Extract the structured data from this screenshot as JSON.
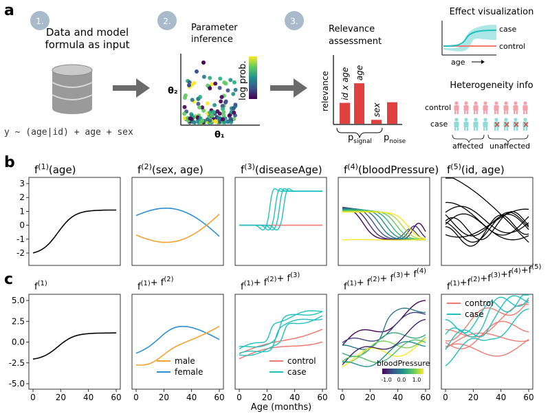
{
  "panel_a": {
    "label": "a",
    "steps": [
      {
        "badge": "1.",
        "text_lines": [
          "Data and model",
          "formula as input"
        ]
      },
      {
        "badge": "2.",
        "text_lines": [
          "Parameter",
          "inference"
        ]
      },
      {
        "badge": "3.",
        "text_lines": [
          "Relevance",
          "assessment"
        ]
      }
    ],
    "formula": "y ~ (age|id) + age + sex",
    "param_plot": {
      "y_label": "θ₂",
      "x_label": "θ₁",
      "colorbar_label": "log prob."
    },
    "relevance_plot": {
      "y_label": "relevance",
      "bars": [
        {
          "label": "id x age",
          "value": 0.32
        },
        {
          "label": "age",
          "value": 0.62
        },
        {
          "label": "sex",
          "value": 0.06
        },
        {
          "label": "",
          "value": 0.33
        }
      ],
      "p_signal": "p",
      "p_signal_sub": "signal",
      "p_noise": "p",
      "p_noise_sub": "noise"
    },
    "effect_vis": {
      "title": "Effect visualization",
      "case": "case",
      "control": "control",
      "axis": "age"
    },
    "heterogeneity": {
      "title": "Heterogeneity info",
      "row_control": "control",
      "row_case": "case",
      "affected": "affected",
      "unaffected": "unaffected"
    }
  },
  "panel_b": {
    "label": "b",
    "titles": [
      {
        "f": "f",
        "sup": "(1)",
        "arg": "(age)"
      },
      {
        "f": "f",
        "sup": "(2)",
        "arg": "(sex, age)"
      },
      {
        "f": "f",
        "sup": "(3)",
        "arg": "(diseaseAge)"
      },
      {
        "f": "f",
        "sup": "(4)",
        "arg": "(bloodPressure)"
      },
      {
        "f": "f",
        "sup": "(5)",
        "arg": "(id, age)"
      }
    ],
    "y_ticks": [
      "3",
      "2",
      "1",
      "0",
      "-1",
      "-2"
    ]
  },
  "panel_c": {
    "label": "c",
    "titles": [
      "f(1)",
      "f(1)+ f(2)",
      "f(1)+ f(2)+ f(3)",
      "f(1)+ f(2)+ f(3)+ f(4)",
      "f(1)+f(2)+f(3)+f(4)+f(5)"
    ],
    "y_ticks": [
      "5.0",
      "2.5",
      "0.0",
      "-2.5",
      "-5.0"
    ],
    "x_ticks": [
      "0",
      "20",
      "40",
      "60"
    ],
    "x_label": "Age (months)",
    "legend2": {
      "male": "male",
      "female": "female"
    },
    "legend3": {
      "control": "control",
      "case": "case"
    },
    "legend5": {
      "control": "control",
      "case": "case"
    },
    "colorbar": {
      "title": "bloodPressure",
      "ticks": [
        "-1.0",
        "0.0",
        "1.0"
      ]
    }
  },
  "colors": {
    "teal": "#1fc1bf",
    "salmon": "#f07a70",
    "orange": "#f5a133",
    "blue": "#2b8fd6",
    "bar_red": "#e0413f",
    "badge": "#a9bacb",
    "pink_person": "#f3a3ac",
    "cyan_person": "#8fdbd8"
  }
}
